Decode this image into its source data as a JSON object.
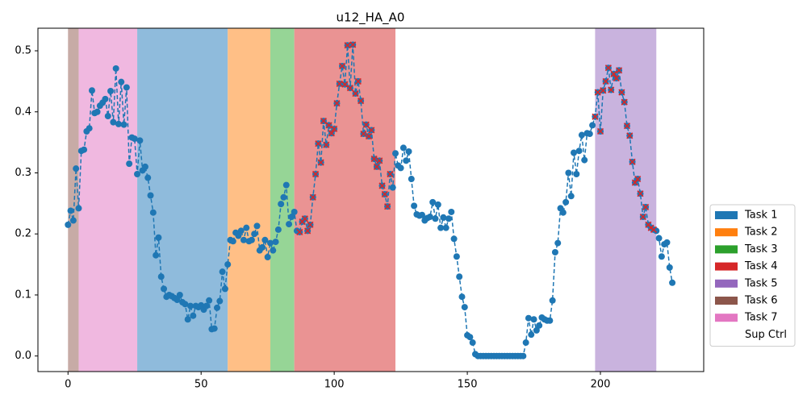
{
  "chart_data": {
    "type": "line",
    "title": "u12_HA_A0",
    "x": [
      0,
      1,
      2,
      3,
      4,
      5,
      6,
      7,
      8,
      9,
      10,
      11,
      12,
      13,
      14,
      15,
      16,
      17,
      18,
      19,
      20,
      21,
      22,
      23,
      24,
      25,
      26,
      27,
      28,
      29,
      30,
      31,
      32,
      33,
      34,
      35,
      36,
      37,
      38,
      39,
      40,
      41,
      42,
      43,
      44,
      45,
      46,
      47,
      48,
      49,
      50,
      51,
      52,
      53,
      54,
      55,
      56,
      57,
      58,
      59,
      60,
      61,
      62,
      63,
      64,
      65,
      66,
      67,
      68,
      69,
      70,
      71,
      72,
      73,
      74,
      75,
      76,
      77,
      78,
      79,
      80,
      81,
      82,
      83,
      84,
      85,
      86,
      87,
      88,
      89,
      90,
      91,
      92,
      93,
      94,
      95,
      96,
      97,
      98,
      99,
      100,
      101,
      102,
      103,
      104,
      105,
      106,
      107,
      108,
      109,
      110,
      111,
      112,
      113,
      114,
      115,
      116,
      117,
      118,
      119,
      120,
      121,
      122,
      123,
      124,
      125,
      126,
      127,
      128,
      129,
      130,
      131,
      132,
      133,
      134,
      135,
      136,
      137,
      138,
      139,
      140,
      141,
      142,
      143,
      144,
      145,
      146,
      147,
      148,
      149,
      150,
      151,
      152,
      153,
      154,
      155,
      156,
      157,
      158,
      159,
      160,
      161,
      162,
      163,
      164,
      165,
      166,
      167,
      168,
      169,
      170,
      171,
      172,
      173,
      174,
      175,
      176,
      177,
      178,
      179,
      180,
      181,
      182,
      183,
      184,
      185,
      186,
      187,
      188,
      189,
      190,
      191,
      192,
      193,
      194,
      195,
      196,
      197,
      198,
      199,
      200,
      201,
      202,
      203,
      204,
      205,
      206,
      207,
      208,
      209,
      210,
      211,
      212,
      213,
      214,
      215,
      216,
      217,
      218,
      219,
      220,
      221,
      222,
      223,
      224,
      225,
      226,
      227
    ],
    "series": [
      {
        "color": "#1f77b4",
        "values": [
          0.215,
          0.238,
          0.222,
          0.307,
          0.242,
          0.336,
          0.338,
          0.368,
          0.373,
          0.435,
          0.398,
          0.4,
          0.41,
          0.415,
          0.421,
          0.393,
          0.434,
          0.383,
          0.471,
          0.38,
          0.449,
          0.379,
          0.44,
          0.315,
          0.358,
          0.356,
          0.298,
          0.353,
          0.304,
          0.31,
          0.292,
          0.263,
          0.235,
          0.165,
          0.194,
          0.13,
          0.11,
          0.097,
          0.1,
          0.098,
          0.095,
          0.092,
          0.1,
          0.088,
          0.085,
          0.06,
          0.082,
          0.066,
          0.082,
          0.08,
          0.083,
          0.076,
          0.082,
          0.091,
          0.044,
          0.045,
          0.079,
          0.09,
          0.138,
          0.11,
          0.15,
          0.19,
          0.188,
          0.202,
          0.197,
          0.205,
          0.19,
          0.21,
          0.188,
          0.19,
          0.2,
          0.213,
          0.173,
          0.178,
          0.19,
          0.162,
          0.185,
          0.173,
          0.187,
          0.207,
          0.249,
          0.26,
          0.28,
          0.216,
          0.228,
          0.236,
          0.205,
          0.203,
          0.22,
          0.225,
          0.205,
          0.215,
          0.26,
          0.298,
          0.348,
          0.317,
          0.385,
          0.346,
          0.378,
          0.365,
          0.372,
          0.414,
          0.446,
          0.475,
          0.445,
          0.509,
          0.439,
          0.51,
          0.43,
          0.45,
          0.418,
          0.364,
          0.379,
          0.36,
          0.37,
          0.323,
          0.31,
          0.32,
          0.279,
          0.265,
          0.245,
          0.298,
          0.276,
          0.332,
          0.312,
          0.308,
          0.341,
          0.32,
          0.335,
          0.29,
          0.246,
          0.232,
          0.23,
          0.231,
          0.222,
          0.226,
          0.228,
          0.252,
          0.225,
          0.248,
          0.21,
          0.227,
          0.21,
          0.225,
          0.236,
          0.192,
          0.163,
          0.13,
          0.097,
          0.08,
          0.034,
          0.031,
          0.022,
          0.003,
          0,
          0,
          0,
          0,
          0,
          0,
          0,
          0,
          0,
          0,
          0,
          0,
          0,
          0,
          0,
          0,
          0,
          0,
          0.022,
          0.062,
          0.035,
          0.06,
          0.042,
          0.05,
          0.063,
          0.06,
          0.058,
          0.058,
          0.091,
          0.17,
          0.185,
          0.242,
          0.235,
          0.252,
          0.3,
          0.262,
          0.333,
          0.298,
          0.336,
          0.362,
          0.321,
          0.365,
          0.364,
          0.378,
          0.392,
          0.432,
          0.368,
          0.435,
          0.45,
          0.472,
          0.436,
          0.462,
          0.455,
          0.468,
          0.432,
          0.416,
          0.377,
          0.361,
          0.318,
          0.284,
          0.29,
          0.266,
          0.228,
          0.244,
          0.215,
          0.21,
          0.207,
          0.205,
          0.193,
          0.163,
          0.183,
          0.186,
          0.145,
          0.12
        ]
      },
      {
        "color": "#d62728",
        "marker": "x",
        "x": [
          87,
          88,
          89,
          90,
          91,
          92,
          93,
          94,
          95,
          96,
          97,
          98,
          99,
          100,
          101,
          102,
          103,
          104,
          105,
          106,
          107,
          108,
          109,
          110,
          111,
          112,
          113,
          114,
          115,
          116,
          117,
          118,
          119,
          120,
          121,
          198,
          199,
          200,
          201,
          202,
          203,
          204,
          205,
          206,
          207,
          208,
          209,
          210,
          211,
          212,
          213,
          214,
          215,
          216,
          217,
          218,
          219,
          220
        ],
        "values": [
          0.203,
          0.22,
          0.225,
          0.205,
          0.215,
          0.26,
          0.298,
          0.348,
          0.317,
          0.385,
          0.346,
          0.378,
          0.365,
          0.372,
          0.414,
          0.446,
          0.475,
          0.445,
          0.509,
          0.439,
          0.51,
          0.43,
          0.45,
          0.418,
          0.364,
          0.379,
          0.36,
          0.37,
          0.323,
          0.31,
          0.32,
          0.279,
          0.265,
          0.245,
          0.298,
          0.392,
          0.432,
          0.368,
          0.435,
          0.45,
          0.472,
          0.436,
          0.462,
          0.455,
          0.468,
          0.432,
          0.416,
          0.377,
          0.361,
          0.318,
          0.284,
          0.29,
          0.266,
          0.228,
          0.244,
          0.215,
          0.21,
          0.207
        ]
      }
    ],
    "spans": [
      {
        "x0": 0,
        "x1": 4,
        "color": "#c7aba6"
      },
      {
        "x0": 4,
        "x1": 26,
        "color": "#f0b8e0"
      },
      {
        "x0": 26,
        "x1": 60,
        "color": "#8fbbdc"
      },
      {
        "x0": 60,
        "x1": 76,
        "color": "#ffbf86"
      },
      {
        "x0": 76,
        "x1": 85,
        "color": "#96d596"
      },
      {
        "x0": 85,
        "x1": 123,
        "color": "#ea9393"
      },
      {
        "x0": 198,
        "x1": 221,
        "color": "#c9b3de"
      }
    ],
    "legend": [
      {
        "name": "Task 1",
        "color": "#1f77b4"
      },
      {
        "name": "Task 2",
        "color": "#ff7f0e"
      },
      {
        "name": "Task 3",
        "color": "#2ca02c"
      },
      {
        "name": "Task 4",
        "color": "#d62728"
      },
      {
        "name": "Task 5",
        "color": "#9467bd"
      },
      {
        "name": "Task 6",
        "color": "#8c564b"
      },
      {
        "name": "Task 7",
        "color": "#e377c2"
      },
      {
        "name": "Sup Ctrl",
        "color": "#ffffff"
      }
    ],
    "xlim": [
      -11.3,
      238.8
    ],
    "ylim": [
      -0.0255,
      0.537
    ],
    "xticks": [
      0,
      50,
      100,
      150,
      200
    ],
    "yticks": [
      {
        "value": 0,
        "label": "0.0"
      },
      0.1,
      0.2,
      0.3,
      0.4,
      0.5
    ]
  }
}
